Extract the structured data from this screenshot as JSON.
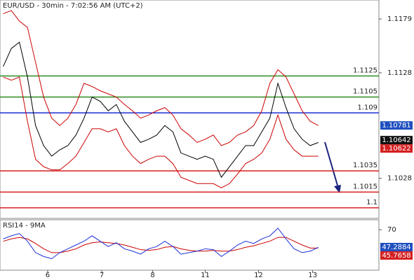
{
  "chart_data": [
    {
      "type": "line",
      "title": "EUR/USD - 30min - 7:02:56 AM (UTC+2)",
      "x": [
        0,
        1,
        2,
        3,
        4,
        5,
        6,
        7,
        8,
        9,
        10,
        11,
        12,
        13,
        14,
        15,
        16,
        17,
        18,
        19,
        20,
        21,
        22,
        23,
        24,
        25,
        26,
        27,
        28,
        29,
        30,
        31,
        32,
        33,
        34,
        35,
        36,
        37,
        38,
        39
      ],
      "xlim": [
        -0.4,
        46.5
      ],
      "ylim": [
        1.099,
        1.1197
      ],
      "yticks": [
        1.1179,
        1.1128,
        1.1028
      ],
      "series": [
        {
          "color": "#cc0000",
          "values": [
            1.1184,
            1.1187,
            1.1177,
            1.1171,
            1.1138,
            1.1105,
            1.1085,
            1.1078,
            1.1085,
            1.1098,
            1.1118,
            1.1115,
            1.1111,
            1.1108,
            1.1105,
            1.1098,
            1.1092,
            1.1085,
            1.1088,
            1.1092,
            1.1095,
            1.1088,
            1.1075,
            1.1069,
            1.1062,
            1.1065,
            1.1069,
            1.1059,
            1.1062,
            1.1069,
            1.1072,
            1.1078,
            1.1092,
            1.1118,
            1.1131,
            1.1124,
            1.1108,
            1.1092,
            1.1082,
            1.1078
          ]
        },
        {
          "color": "#cc0000",
          "values": [
            1.1124,
            1.1121,
            1.1124,
            1.1082,
            1.1046,
            1.1039,
            1.1036,
            1.1036,
            1.1042,
            1.1049,
            1.1062,
            1.1075,
            1.1075,
            1.1072,
            1.1075,
            1.1059,
            1.1049,
            1.1042,
            1.1046,
            1.1049,
            1.1049,
            1.1042,
            1.1029,
            1.1026,
            1.1023,
            1.1023,
            1.1023,
            1.1019,
            1.1023,
            1.1032,
            1.1042,
            1.1046,
            1.1052,
            1.1065,
            1.1088,
            1.1065,
            1.1055,
            1.1049,
            1.1049,
            1.1049
          ]
        },
        {
          "color": "#000000",
          "values": [
            1.1134,
            1.1151,
            1.1157,
            1.1124,
            1.1078,
            1.1059,
            1.1049,
            1.1055,
            1.1059,
            1.1069,
            1.1085,
            1.1105,
            1.1101,
            1.1092,
            1.1098,
            1.1082,
            1.1072,
            1.1062,
            1.1065,
            1.1069,
            1.1078,
            1.1072,
            1.1052,
            1.1049,
            1.1046,
            1.1049,
            1.1046,
            1.1029,
            1.1039,
            1.1049,
            1.1059,
            1.1059,
            1.1072,
            1.1085,
            1.1118,
            1.1095,
            1.1075,
            1.1065,
            1.1059,
            1.1062
          ]
        }
      ],
      "levels": [
        {
          "value": 1.1125,
          "color": "#2e8b22"
        },
        {
          "value": 1.1105,
          "color": "#2e8b22"
        },
        {
          "value": 1.109,
          "color": "#1a2fd6"
        },
        {
          "value": 1.1035,
          "color": "#d42020"
        },
        {
          "value": 1.1015,
          "color": "#d42020"
        },
        {
          "value": 1.1,
          "color": "#d42020"
        }
      ],
      "price_labels": [
        {
          "value": 1.10781,
          "color": "#1f4fbf"
        },
        {
          "value": 1.10642,
          "color": "#111111"
        },
        {
          "value": 1.10622,
          "color": "#d42020"
        }
      ]
    },
    {
      "type": "line",
      "title": "RSI14 - 9MA",
      "x": [
        0,
        1,
        2,
        3,
        4,
        5,
        6,
        7,
        8,
        9,
        10,
        11,
        12,
        13,
        14,
        15,
        16,
        17,
        18,
        19,
        20,
        21,
        22,
        23,
        24,
        25,
        26,
        27,
        28,
        29,
        30,
        31,
        32,
        33,
        34,
        35,
        36,
        37,
        38,
        39
      ],
      "xlim": [
        -0.4,
        46.5
      ],
      "ylim": [
        17,
        83
      ],
      "yticks": [
        70
      ],
      "xticks": [
        {
          "value": 5.5,
          "label": "6"
        },
        {
          "value": 12.2,
          "label": "7"
        },
        {
          "value": 18.5,
          "label": "8"
        },
        {
          "value": 25.0,
          "label": "11"
        },
        {
          "value": 31.6,
          "label": "12"
        },
        {
          "value": 38.3,
          "label": "13"
        }
      ],
      "series": [
        {
          "color": "#cc0000",
          "values": [
            55,
            58,
            60,
            58,
            52,
            45,
            40,
            40,
            42,
            45,
            50,
            53,
            54,
            53,
            52,
            50,
            47,
            44,
            43,
            44,
            47,
            48,
            45,
            43,
            42,
            42,
            43,
            42,
            42,
            44,
            47,
            49,
            52,
            55,
            60,
            60,
            55,
            50,
            46,
            46
          ]
        },
        {
          "color": "#1a2fd6",
          "values": [
            58,
            62,
            65,
            55,
            40,
            35,
            32,
            40,
            45,
            50,
            55,
            62,
            55,
            48,
            53,
            45,
            42,
            38,
            45,
            48,
            55,
            48,
            38,
            40,
            42,
            45,
            44,
            35,
            42,
            50,
            55,
            52,
            58,
            62,
            72,
            58,
            45,
            40,
            42,
            47
          ]
        }
      ],
      "price_labels": [
        {
          "value": 47.2884,
          "color": "#1f4fbf"
        },
        {
          "value": 45.7658,
          "color": "#d42020"
        }
      ]
    }
  ]
}
